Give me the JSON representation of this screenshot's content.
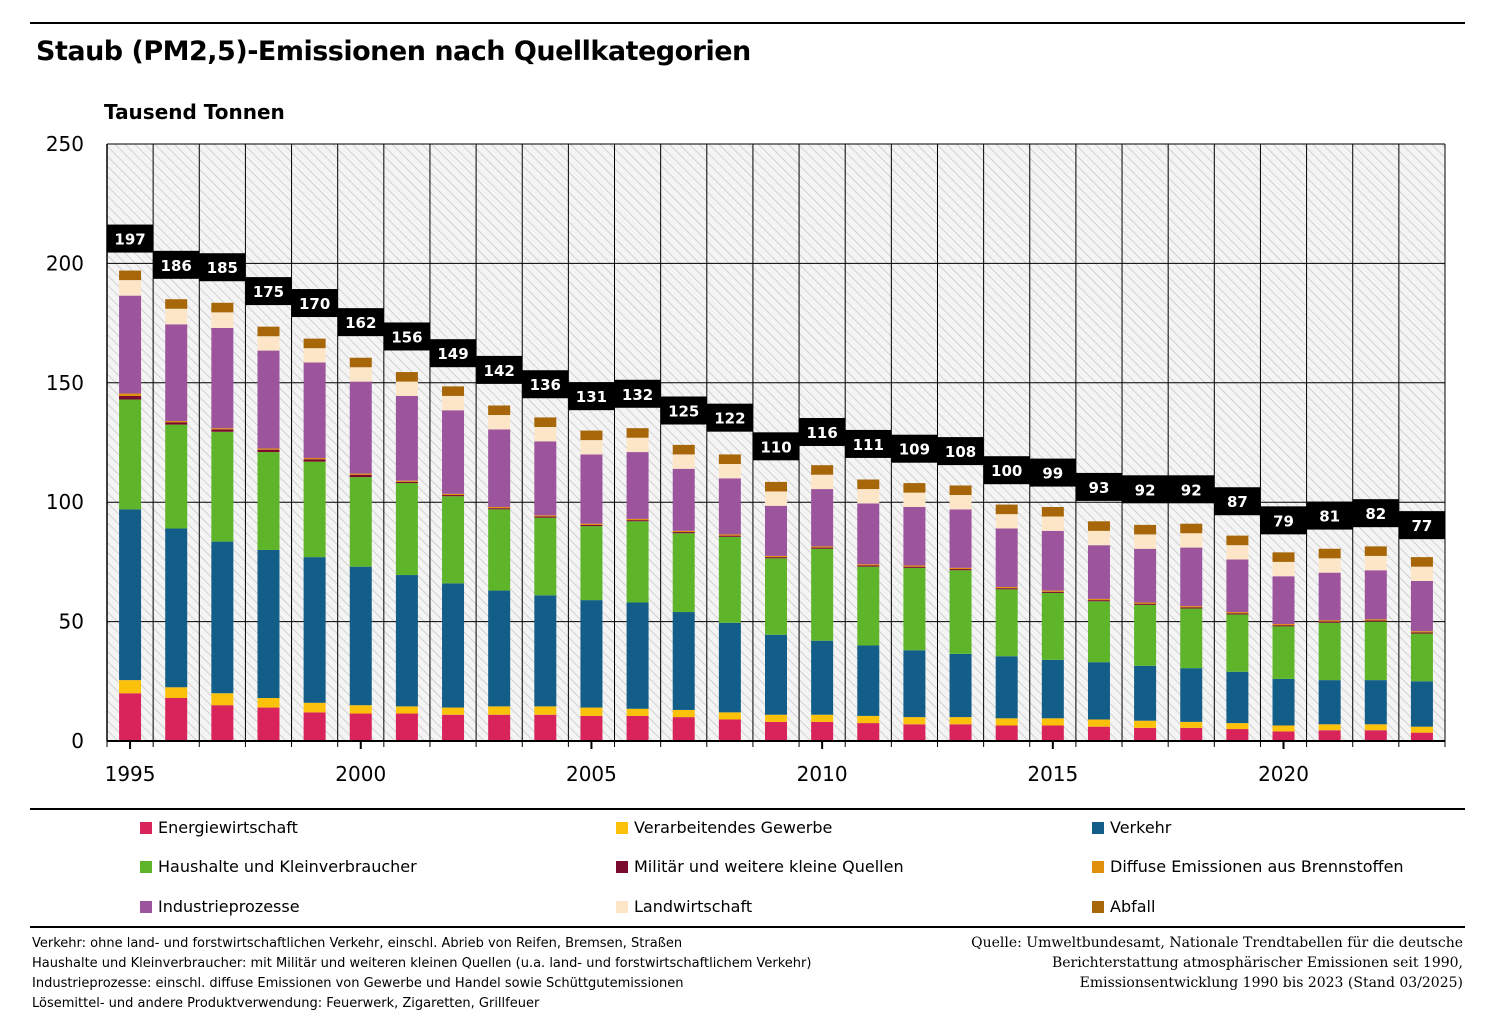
{
  "title": "Staub (PM2,5)-Emissionen nach Quellkategorien",
  "colors": {
    "Energiewirtschaft": "#d8245b",
    "Verarbeitendes Gewerbe": "#fcc10a",
    "Verkehr": "#135e88",
    "Haushalte und Kleinverbraucher": "#5fb52a",
    "Militär und weitere kleine Quellen": "#7b0a2f",
    "Diffuse Emissionen aus Brennstoffen": "#e0900c",
    "Industrieprozesse": "#9c559c",
    "Landwirtschaft": "#fde6c8",
    "Abfall": "#a76708"
  },
  "chart_data": {
    "type": "bar",
    "stacked": true,
    "title": "Staub (PM2,5)-Emissionen nach Quellkategorien",
    "ylabel": "Tausend Tonnen",
    "ylim": [
      0,
      250
    ],
    "yticks": [
      "0",
      "50",
      "100",
      "150",
      "200",
      "250"
    ],
    "xticks": [
      "1995",
      "2000",
      "2005",
      "2010",
      "2015",
      "2020"
    ],
    "grid": true,
    "legend_position": "bottom",
    "categories": [
      "1995",
      "1996",
      "1997",
      "1998",
      "1999",
      "2000",
      "2001",
      "2002",
      "2003",
      "2004",
      "2005",
      "2006",
      "2007",
      "2008",
      "2009",
      "2010",
      "2011",
      "2012",
      "2013",
      "2014",
      "2015",
      "2016",
      "2017",
      "2018",
      "2019",
      "2020",
      "2021",
      "2022",
      "2023"
    ],
    "totals": [
      197,
      186,
      185,
      175,
      170,
      162,
      156,
      149,
      142,
      136,
      131,
      132,
      125,
      122,
      110,
      116,
      111,
      109,
      108,
      100,
      99,
      93,
      92,
      92,
      87,
      79,
      81,
      82,
      77
    ],
    "series": [
      {
        "name": "Energiewirtschaft",
        "values": [
          20,
          18,
          15,
          14,
          12,
          11.5,
          11.5,
          11,
          11,
          11,
          10.5,
          10.5,
          10,
          9,
          8,
          8,
          7.5,
          7,
          7,
          6.5,
          6.5,
          6,
          5.5,
          5.5,
          5,
          4,
          4.5,
          4.5,
          3.5
        ]
      },
      {
        "name": "Verarbeitendes Gewerbe",
        "values": [
          5.5,
          4.5,
          5,
          4,
          4,
          3.5,
          3,
          3,
          3.5,
          3.5,
          3.5,
          3,
          3,
          3,
          3,
          3,
          3,
          3,
          3,
          3,
          3,
          3,
          3,
          2.5,
          2.5,
          2.5,
          2.5,
          2.5,
          2.5
        ]
      },
      {
        "name": "Verkehr",
        "values": [
          71.5,
          66.5,
          63.5,
          62,
          61,
          58,
          55,
          52,
          48.5,
          46.5,
          45,
          44.5,
          41,
          37.5,
          33.5,
          31,
          29.5,
          28,
          26.5,
          26,
          24.5,
          24,
          23,
          22.5,
          21.5,
          19.5,
          18.5,
          18.5,
          19
        ]
      },
      {
        "name": "Haushalte und Kleinverbraucher",
        "values": [
          46,
          43.5,
          46,
          41,
          40,
          37.5,
          38.5,
          36.5,
          34,
          32.5,
          31,
          34,
          33,
          36,
          32,
          38.5,
          33,
          34.5,
          35,
          28,
          28,
          25.5,
          25.5,
          25,
          24,
          22,
          24,
          24.5,
          20
        ]
      },
      {
        "name": "Militär und weitere kleine Quellen",
        "values": [
          1.5,
          1,
          1,
          1,
          1,
          1,
          0.5,
          0.5,
          0.5,
          0.5,
          0.5,
          0.5,
          0.5,
          0.5,
          0.5,
          0.5,
          0.5,
          0.5,
          0.5,
          0.5,
          0.5,
          0.5,
          0.5,
          0.5,
          0.5,
          0.5,
          0.5,
          0.5,
          0.5
        ]
      },
      {
        "name": "Diffuse Emissionen aus Brennstoffen",
        "values": [
          1,
          0.5,
          0.5,
          0.5,
          0.5,
          0.5,
          0.5,
          0.5,
          0.5,
          0.5,
          0.5,
          0.5,
          0.5,
          0.5,
          0.5,
          0.5,
          0.5,
          0.5,
          0.5,
          0.5,
          0.5,
          0.5,
          0.5,
          0.5,
          0.5,
          0.5,
          0.5,
          0.5,
          0.5
        ]
      },
      {
        "name": "Industrieprozesse",
        "values": [
          41,
          40.5,
          42,
          41,
          40,
          38.5,
          35.5,
          35,
          32.5,
          31,
          29,
          28,
          26,
          23.5,
          21,
          24,
          25.5,
          24.5,
          24.5,
          24.5,
          25,
          22.5,
          22.5,
          24.5,
          22,
          20,
          20,
          20.5,
          21
        ]
      },
      {
        "name": "Landwirtschaft",
        "values": [
          6.5,
          6.5,
          6.5,
          6,
          6,
          6,
          6,
          6,
          6,
          6,
          6,
          6,
          6,
          6,
          6,
          6,
          6,
          6,
          6,
          6,
          6,
          6,
          6,
          6,
          6,
          6,
          6,
          6,
          6
        ]
      },
      {
        "name": "Abfall",
        "values": [
          4,
          4,
          4,
          4,
          4,
          4,
          4,
          4,
          4,
          4,
          4,
          4,
          4,
          4,
          4,
          4,
          4,
          4,
          4,
          4,
          4,
          4,
          4,
          4,
          4,
          4,
          4,
          4,
          4
        ]
      }
    ]
  },
  "legend": [
    [
      "Energiewirtschaft",
      "Verarbeitendes Gewerbe",
      "Verkehr"
    ],
    [
      "Haushalte und Kleinverbraucher",
      "Militär und weitere kleine Quellen",
      "Diffuse Emissionen aus Brennstoffen"
    ],
    [
      "Industrieprozesse",
      "Landwirtschaft",
      "Abfall"
    ]
  ],
  "notes": [
    "Verkehr: ohne land- und forstwirtschaftlichen Verkehr, einschl. Abrieb von Reifen, Bremsen, Straßen",
    "Haushalte und Kleinverbraucher: mit Militär und weiteren kleinen Quellen (u.a. land- und forstwirtschaftlichem Verkehr)",
    "Industrieprozesse: einschl. diffuse Emissionen von Gewerbe und Handel sowie Schüttgutemissionen",
    "Lösemittel- und andere Produktverwendung: Feuerwerk, Zigaretten, Grillfeuer"
  ],
  "source": [
    "Quelle: Umweltbundesamt, Nationale Trendtabellen für die deutsche",
    "Berichterstattung atmosphärischer Emissionen seit 1990,",
    "Emissionsentwicklung 1990 bis 2023 (Stand 03/2025)"
  ]
}
